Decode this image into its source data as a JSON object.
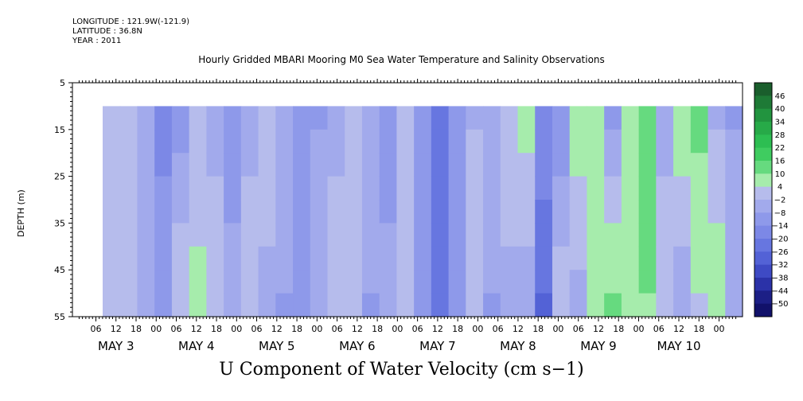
{
  "header": {
    "longitude": "LONGITUDE : 121.9W(-121.9)",
    "latitude": "LATITUDE : 36.8N",
    "year": "YEAR : 2011"
  },
  "chart_data": {
    "type": "heatmap",
    "title": "Hourly Gridded MBARI Mooring M0 Sea Water Temperature and Salinity Observations",
    "xlabel": "",
    "xtitle": "U Component of Water Velocity (cm s−1)",
    "ylabel": "DEPTH (m)",
    "ylim": [
      55,
      5
    ],
    "yticks": [
      5,
      15,
      25,
      35,
      45,
      55
    ],
    "hour_ticks": [
      "06",
      "12",
      "18",
      "00",
      "06",
      "12",
      "18",
      "00",
      "06",
      "12",
      "18",
      "00",
      "06",
      "12",
      "18",
      "00",
      "06",
      "12",
      "18",
      "00",
      "06",
      "12",
      "18",
      "00",
      "06",
      "12",
      "18",
      "00",
      "06",
      "12",
      "18",
      "00"
    ],
    "day_labels": [
      "MAY  3",
      "MAY  4",
      "MAY  5",
      "MAY  6",
      "MAY  7",
      "MAY  8",
      "MAY  9",
      "MAY 10"
    ],
    "data_depth_range": [
      10,
      55
    ],
    "colorbar_labels": [
      "46",
      "40",
      "34",
      "28",
      "22",
      "16",
      "10",
      "4",
      "−2",
      "−8",
      "−14",
      "−20",
      "−26",
      "−32",
      "−38",
      "−44",
      "−50"
    ],
    "colorbar_colors": [
      "#1a5e2c",
      "#1e7a36",
      "#22943f",
      "#27aa48",
      "#2dbe52",
      "#3fcc60",
      "#66da7f",
      "#a6ecac",
      "#b6bcec",
      "#a2aaec",
      "#8e99ea",
      "#7c88e6",
      "#6776e0",
      "#5362d6",
      "#3e4ac4",
      "#2b32a8",
      "#1c1f86",
      "#11116a"
    ],
    "columns": [
      {
        "surface": 2,
        "bottom": 2
      },
      {
        "surface": 4,
        "bottom": 1
      },
      {
        "surface": -6,
        "bottom": -2
      },
      {
        "surface": -16,
        "bottom": -8
      },
      {
        "surface": -10,
        "bottom": 4
      },
      {
        "surface": 2,
        "bottom": 5
      },
      {
        "surface": -4,
        "bottom": 3
      },
      {
        "surface": -10,
        "bottom": -6
      },
      {
        "surface": -4,
        "bottom": 4
      },
      {
        "surface": 4,
        "bottom": -4
      },
      {
        "surface": -6,
        "bottom": -8
      },
      {
        "surface": -12,
        "bottom": -10
      },
      {
        "surface": -8,
        "bottom": -6
      },
      {
        "surface": -4,
        "bottom": 3
      },
      {
        "surface": 2,
        "bottom": 4
      },
      {
        "surface": -6,
        "bottom": -8
      },
      {
        "surface": -10,
        "bottom": -6
      },
      {
        "surface": 2,
        "bottom": 4
      },
      {
        "surface": -10,
        "bottom": -12
      },
      {
        "surface": -20,
        "bottom": -22
      },
      {
        "surface": -10,
        "bottom": -8
      },
      {
        "surface": -2,
        "bottom": 3
      },
      {
        "surface": -6,
        "bottom": -8
      },
      {
        "surface": 4,
        "bottom": -4
      },
      {
        "surface": 6,
        "bottom": -6
      },
      {
        "surface": -14,
        "bottom": -26
      },
      {
        "surface": -12,
        "bottom": 4
      },
      {
        "surface": 8,
        "bottom": -4
      },
      {
        "surface": 6,
        "bottom": 10
      },
      {
        "surface": -8,
        "bottom": 12
      },
      {
        "surface": 10,
        "bottom": 6
      },
      {
        "surface": 14,
        "bottom": 10
      },
      {
        "surface": -4,
        "bottom": 4
      },
      {
        "surface": 10,
        "bottom": -6
      },
      {
        "surface": 12,
        "bottom": 4
      },
      {
        "surface": -2,
        "bottom": 10
      },
      {
        "surface": -8,
        "bottom": -6
      }
    ]
  }
}
